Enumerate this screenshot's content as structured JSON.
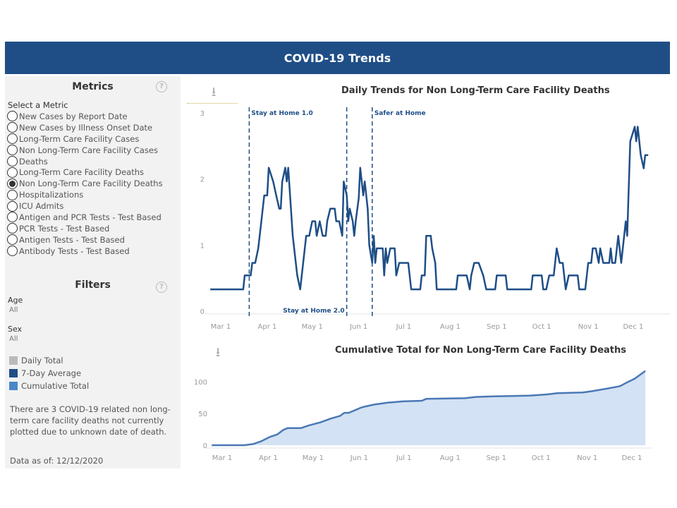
{
  "header": {
    "title": "COVID-19 Trends"
  },
  "metrics": {
    "title": "Metrics",
    "select_label": "Select a Metric",
    "selected": 6,
    "options": [
      "New Cases by Report Date",
      "New Cases by Illness Onset Date",
      "Long-Term Care Facility Cases",
      "Non Long-Term Care Facility Cases",
      "Deaths",
      "Long-Term Care Facility Deaths",
      "Non Long-Term Care Facility Deaths",
      "Hospitalizations",
      "ICU Admits",
      "Antigen and PCR Tests - Test Based",
      "PCR Tests - Test Based",
      "Antigen Tests - Test Based",
      "Antibody Tests - Test Based"
    ]
  },
  "filters": {
    "title": "Filters",
    "age_label": "Age",
    "age_value": "All",
    "sex_label": "Sex",
    "sex_value": "All"
  },
  "legend": [
    {
      "label": "Daily Total",
      "color": "#bababa"
    },
    {
      "label": "7-Day Average",
      "color": "#1f4e87"
    },
    {
      "label": "Cumulative Total",
      "color": "#4a86c8"
    }
  ],
  "note": "There are 3 COVID-19 related non long-term care facility deaths not currently plotted due to unknown date of death.",
  "as_of": "Data as of: 12/12/2020",
  "chart_data": [
    {
      "type": "line",
      "title": "Daily Trends for Non Long-Term Care Facility Deaths",
      "x_unit": "days since Mar 1",
      "ylim": [
        0,
        3
      ],
      "y_ticks": [
        "0",
        "1",
        "2",
        "3"
      ],
      "x_ticks": [
        {
          "label": "Mar 1",
          "day": 0
        },
        {
          "label": "Apr 1",
          "day": 31
        },
        {
          "label": "May 1",
          "day": 61
        },
        {
          "label": "Jun 1",
          "day": 92
        },
        {
          "label": "Jul 1",
          "day": 122
        },
        {
          "label": "Aug 1",
          "day": 153
        },
        {
          "label": "Sep 1",
          "day": 184
        },
        {
          "label": "Oct 1",
          "day": 214
        },
        {
          "label": "Nov 1",
          "day": 245
        },
        {
          "label": "Dec 1",
          "day": 275
        }
      ],
      "annotations": [
        {
          "label": "Stay at Home 1.0",
          "day": 19,
          "pos": "top"
        },
        {
          "label": "Stay at Home 2.0",
          "day": 84,
          "pos": "bottom"
        },
        {
          "label": "Safer at Home",
          "day": 101,
          "pos": "top"
        }
      ],
      "series": [
        {
          "name": "7-Day Average",
          "points": [
            [
              -7,
              0.33
            ],
            [
              15,
              0.33
            ],
            [
              16,
              0.54
            ],
            [
              20,
              0.54
            ],
            [
              21,
              0.73
            ],
            [
              23,
              0.73
            ],
            [
              25,
              0.95
            ],
            [
              27,
              1.34
            ],
            [
              29,
              1.75
            ],
            [
              31,
              1.75
            ],
            [
              32,
              2.17
            ],
            [
              35,
              1.96
            ],
            [
              37,
              1.75
            ],
            [
              39,
              1.55
            ],
            [
              40,
              1.55
            ],
            [
              41,
              1.96
            ],
            [
              43,
              2.17
            ],
            [
              44,
              1.96
            ],
            [
              45,
              2.17
            ],
            [
              48,
              1.14
            ],
            [
              51,
              0.54
            ],
            [
              53,
              0.33
            ],
            [
              54,
              0.54
            ],
            [
              57,
              1.14
            ],
            [
              59,
              1.14
            ],
            [
              61,
              1.36
            ],
            [
              63,
              1.36
            ],
            [
              64,
              1.14
            ],
            [
              66,
              1.36
            ],
            [
              68,
              1.14
            ],
            [
              70,
              1.14
            ],
            [
              71,
              1.36
            ],
            [
              73,
              1.55
            ],
            [
              76,
              1.55
            ],
            [
              77,
              1.36
            ],
            [
              79,
              1.36
            ],
            [
              81,
              1.14
            ],
            [
              82,
              1.96
            ],
            [
              84,
              1.75
            ],
            [
              85,
              1.36
            ],
            [
              86,
              1.55
            ],
            [
              88,
              1.36
            ],
            [
              89,
              1.14
            ],
            [
              90,
              1.36
            ],
            [
              92,
              1.71
            ],
            [
              93,
              2.17
            ],
            [
              95,
              1.75
            ],
            [
              96,
              1.96
            ],
            [
              98,
              1.55
            ],
            [
              99,
              1.0
            ],
            [
              101,
              0.73
            ],
            [
              102,
              1.14
            ],
            [
              103,
              0.73
            ],
            [
              104,
              0.95
            ],
            [
              108,
              0.95
            ],
            [
              109,
              0.54
            ],
            [
              110,
              0.95
            ],
            [
              111,
              0.73
            ],
            [
              113,
              0.95
            ],
            [
              116,
              0.95
            ],
            [
              117,
              0.54
            ],
            [
              119,
              0.73
            ],
            [
              125,
              0.73
            ],
            [
              127,
              0.33
            ],
            [
              133,
              0.33
            ],
            [
              134,
              0.54
            ],
            [
              136,
              0.54
            ],
            [
              137,
              1.14
            ],
            [
              140,
              1.14
            ],
            [
              141,
              0.95
            ],
            [
              143,
              0.73
            ],
            [
              144,
              0.33
            ],
            [
              157,
              0.33
            ],
            [
              158,
              0.54
            ],
            [
              164,
              0.54
            ],
            [
              166,
              0.33
            ],
            [
              167,
              0.54
            ],
            [
              169,
              0.73
            ],
            [
              172,
              0.73
            ],
            [
              175,
              0.54
            ],
            [
              177,
              0.33
            ],
            [
              183,
              0.33
            ],
            [
              184,
              0.54
            ],
            [
              190,
              0.54
            ],
            [
              191,
              0.33
            ],
            [
              207,
              0.33
            ],
            [
              208,
              0.54
            ],
            [
              214,
              0.54
            ],
            [
              215,
              0.33
            ],
            [
              217,
              0.33
            ],
            [
              219,
              0.54
            ],
            [
              222,
              0.54
            ],
            [
              224,
              0.95
            ],
            [
              226,
              0.73
            ],
            [
              228,
              0.73
            ],
            [
              230,
              0.33
            ],
            [
              232,
              0.54
            ],
            [
              238,
              0.54
            ],
            [
              239,
              0.33
            ],
            [
              243,
              0.33
            ],
            [
              245,
              0.73
            ],
            [
              247,
              0.73
            ],
            [
              248,
              0.95
            ],
            [
              250,
              0.95
            ],
            [
              252,
              0.73
            ],
            [
              253,
              0.95
            ],
            [
              255,
              0.73
            ],
            [
              259,
              0.73
            ],
            [
              260,
              0.95
            ],
            [
              261,
              0.73
            ],
            [
              263,
              0.73
            ],
            [
              265,
              1.14
            ],
            [
              267,
              0.73
            ],
            [
              270,
              1.36
            ],
            [
              271,
              1.14
            ],
            [
              273,
              2.57
            ],
            [
              276,
              2.79
            ],
            [
              277,
              2.57
            ],
            [
              278,
              2.79
            ],
            [
              280,
              2.36
            ],
            [
              282,
              2.16
            ],
            [
              283,
              2.36
            ],
            [
              285,
              2.36
            ]
          ]
        }
      ]
    },
    {
      "type": "area",
      "title": "Cumulative Total for Non Long-Term Care Facility Deaths",
      "x_unit": "days since Mar 1",
      "ylim": [
        0,
        120
      ],
      "y_ticks": [
        "0",
        "50",
        "100"
      ],
      "x_ticks": [
        {
          "label": "Mar 1",
          "day": 0
        },
        {
          "label": "Apr 1",
          "day": 31
        },
        {
          "label": "May 1",
          "day": 61
        },
        {
          "label": "Jun 1",
          "day": 92
        },
        {
          "label": "Jul 1",
          "day": 122
        },
        {
          "label": "Aug 1",
          "day": 153
        },
        {
          "label": "Sep 1",
          "day": 184
        },
        {
          "label": "Oct 1",
          "day": 214
        },
        {
          "label": "Nov 1",
          "day": 245
        },
        {
          "label": "Dec 1",
          "day": 275
        }
      ],
      "series": [
        {
          "name": "Cumulative Total",
          "points": [
            [
              -7,
              0
            ],
            [
              15,
              0
            ],
            [
              21,
              2
            ],
            [
              26,
              6
            ],
            [
              32,
              13
            ],
            [
              37,
              17
            ],
            [
              41,
              24
            ],
            [
              44,
              27
            ],
            [
              53,
              27
            ],
            [
              58,
              31
            ],
            [
              66,
              36
            ],
            [
              73,
              42
            ],
            [
              79,
              46
            ],
            [
              82,
              51
            ],
            [
              85,
              51
            ],
            [
              93,
              59
            ],
            [
              96,
              61
            ],
            [
              102,
              64
            ],
            [
              111,
              67
            ],
            [
              121,
              69
            ],
            [
              134,
              70
            ],
            [
              137,
              73
            ],
            [
              163,
              74
            ],
            [
              170,
              76
            ],
            [
              182,
              77
            ],
            [
              206,
              78
            ],
            [
              218,
              80
            ],
            [
              225,
              82
            ],
            [
              242,
              83
            ],
            [
              248,
              85
            ],
            [
              258,
              89
            ],
            [
              267,
              93
            ],
            [
              271,
              98
            ],
            [
              277,
              105
            ],
            [
              284,
              117
            ]
          ]
        }
      ]
    }
  ]
}
